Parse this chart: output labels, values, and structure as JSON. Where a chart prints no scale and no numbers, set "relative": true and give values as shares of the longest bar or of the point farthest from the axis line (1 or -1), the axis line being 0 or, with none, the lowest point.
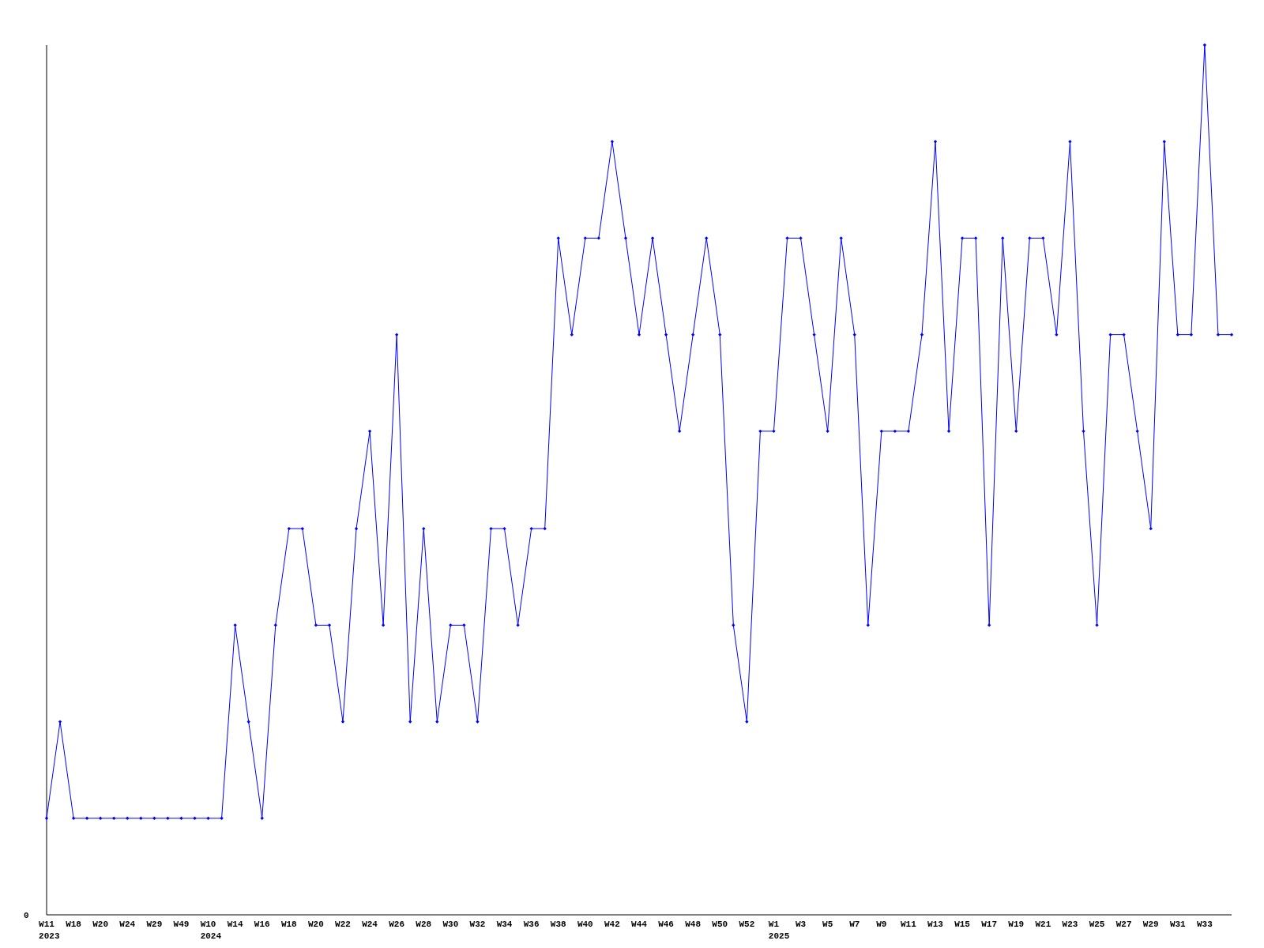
{
  "chart_data": {
    "type": "line",
    "relative": true,
    "marker": "diamond",
    "line_style": "solid",
    "annotations": [
      "0"
    ],
    "categories": [
      "W11\n2023",
      null,
      "W18",
      null,
      "W20",
      null,
      "W24",
      null,
      "W29",
      null,
      "W49",
      null,
      "W10\n2024",
      null,
      "W14",
      null,
      "W16",
      null,
      "W18",
      null,
      "W20",
      null,
      "W22",
      null,
      "W24",
      null,
      "W26",
      null,
      "W28",
      null,
      "W30",
      null,
      "W32",
      null,
      "W34",
      null,
      "W36",
      null,
      "W38",
      null,
      "W40",
      null,
      "W42",
      null,
      "W44",
      null,
      "W46",
      null,
      "W48",
      null,
      "W50",
      null,
      "W52",
      null,
      "W1\n2025",
      null,
      "W3",
      null,
      "W5",
      null,
      "W7",
      null,
      "W9",
      null,
      "W11",
      null,
      "W13",
      null,
      "W15",
      null,
      "W17",
      null,
      "W19",
      null,
      "W21",
      null,
      "W23",
      null,
      "W25",
      null,
      "W27",
      null,
      "W29",
      null,
      "W31",
      null,
      "W33",
      null,
      null
    ],
    "series": [
      {
        "color": "#0000ff",
        "values": [
          0.111,
          0.222,
          0.111,
          0.111,
          0.111,
          0.111,
          0.111,
          0.111,
          0.111,
          0.111,
          0.111,
          0.111,
          0.111,
          0.111,
          0.333,
          0.222,
          0.111,
          0.333,
          0.444,
          0.444,
          0.333,
          0.333,
          0.222,
          0.444,
          0.556,
          0.333,
          0.667,
          0.222,
          0.444,
          0.222,
          0.333,
          0.333,
          0.222,
          0.444,
          0.444,
          0.333,
          0.444,
          0.444,
          0.778,
          0.667,
          0.778,
          0.778,
          0.889,
          0.778,
          0.667,
          0.778,
          0.667,
          0.556,
          0.667,
          0.778,
          0.667,
          0.333,
          0.222,
          0.556,
          0.556,
          0.778,
          0.778,
          0.667,
          0.556,
          0.778,
          0.667,
          0.333,
          0.556,
          0.556,
          0.556,
          0.667,
          0.889,
          0.556,
          0.778,
          0.778,
          0.333,
          0.778,
          0.556,
          0.778,
          0.778,
          0.667,
          0.889,
          0.556,
          0.333,
          0.667,
          0.667,
          0.556,
          0.444,
          0.889,
          0.667,
          0.667,
          1,
          0.667,
          0.667
        ]
      }
    ]
  }
}
